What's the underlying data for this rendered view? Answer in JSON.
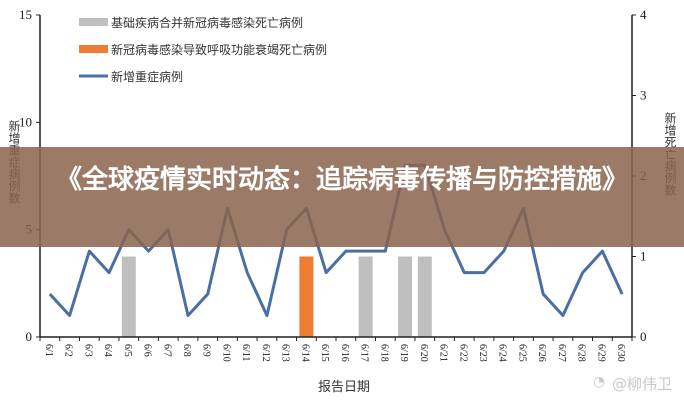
{
  "chart_data": {
    "type": "bar+line",
    "categories": [
      "6/1",
      "6/2",
      "6/3",
      "6/4",
      "6/5",
      "6/6",
      "6/7",
      "6/8",
      "6/9",
      "6/10",
      "6/11",
      "6/12",
      "6/13",
      "6/14",
      "6/15",
      "6/16",
      "6/17",
      "6/18",
      "6/19",
      "6/20",
      "6/21",
      "6/22",
      "6/23",
      "6/24",
      "6/25",
      "6/26",
      "6/27",
      "6/28",
      "6/29",
      "6/30"
    ],
    "series": [
      {
        "name": "基础疾病合并新冠病毒感染死亡病例",
        "type": "bar",
        "axis": "right",
        "color": "#bfbfbf",
        "values": [
          0,
          0,
          0,
          0,
          1,
          0,
          0,
          0,
          0,
          0,
          0,
          0,
          0,
          0,
          0,
          0,
          1,
          0,
          1,
          1,
          0,
          0,
          0,
          0,
          0,
          0,
          0,
          0,
          0,
          0
        ]
      },
      {
        "name": "新冠病毒感染导致呼吸功能衰竭死亡病例",
        "type": "bar",
        "axis": "right",
        "color": "#ed7d31",
        "values": [
          0,
          0,
          0,
          0,
          0,
          0,
          0,
          0,
          0,
          0,
          0,
          0,
          0,
          1,
          0,
          0,
          0,
          0,
          0,
          0,
          0,
          0,
          0,
          0,
          0,
          0,
          0,
          0,
          0,
          0
        ]
      },
      {
        "name": "新增重症病例",
        "type": "line",
        "axis": "left",
        "color": "#4a6fa5",
        "values": [
          2,
          1,
          4,
          3,
          5,
          4,
          5,
          1,
          2,
          6,
          3,
          1,
          5,
          6,
          3,
          4,
          4,
          4,
          8,
          8,
          5,
          3,
          3,
          4,
          6,
          2,
          1,
          3,
          4,
          2
        ]
      }
    ],
    "xlabel": "报告日期",
    "ylabel": "新增重症病例数",
    "y2label": "新增死亡病例数",
    "ylim": [
      0,
      15
    ],
    "y2lim": [
      0,
      4
    ],
    "yticks": [
      "0",
      "5",
      "10",
      "15"
    ],
    "y2ticks": [
      "0",
      "1",
      "2",
      "3",
      "4"
    ],
    "legend_position": "top-left",
    "grid": false
  },
  "overlay": {
    "title": "《全球疫情实时动态：追踪病毒传播与防控措施》",
    "watermark": "@柳伟卫",
    "banner_color": "#8a644e"
  }
}
